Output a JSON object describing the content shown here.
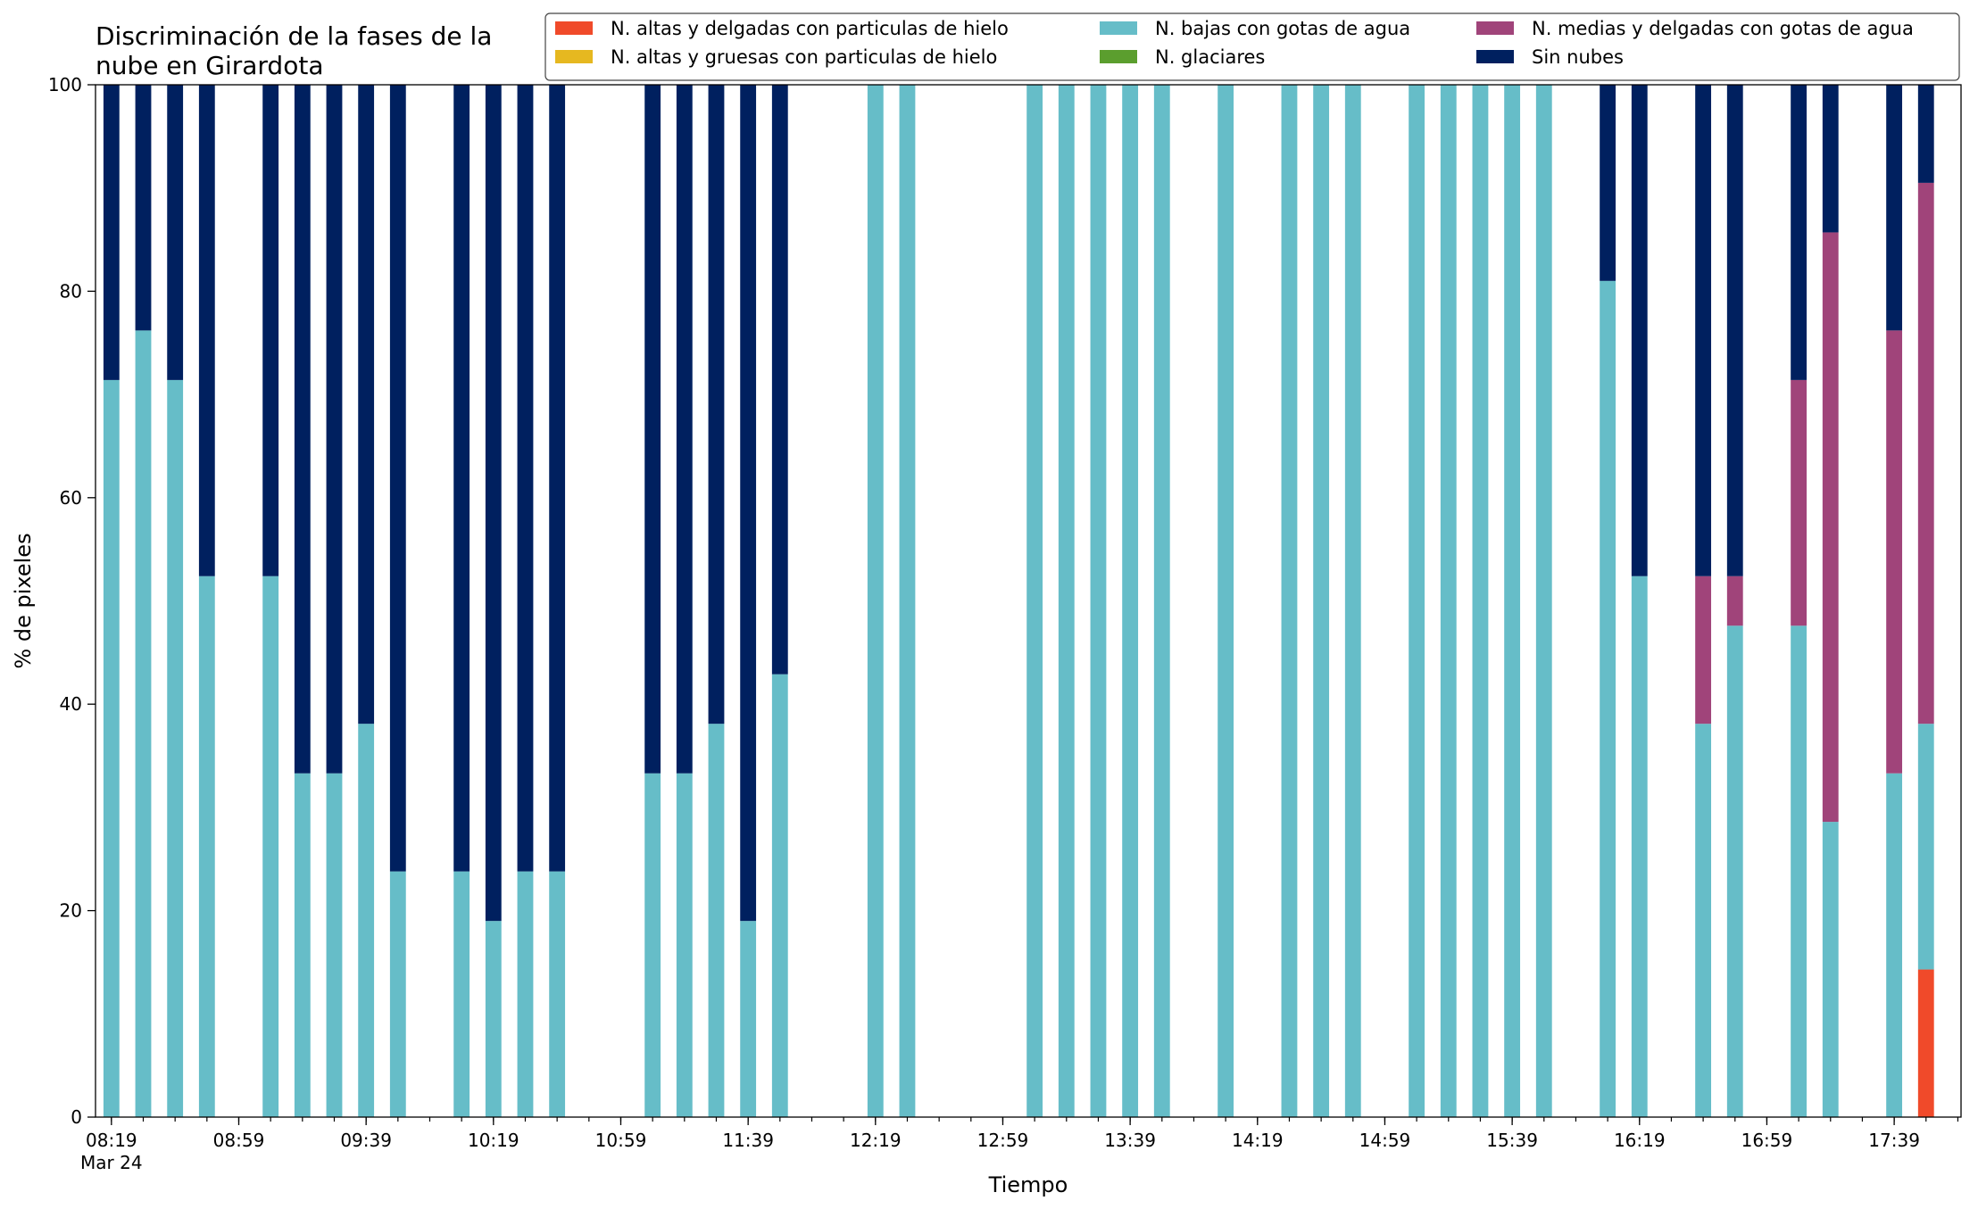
{
  "chart_data": {
    "type": "bar",
    "stacked": true,
    "title": "Discriminación de la fases de la\nnube en Girardota",
    "xlabel": "Tiempo",
    "ylabel": "% de pixeles",
    "ylim": [
      0,
      100
    ],
    "yticks": [
      0,
      20,
      40,
      60,
      80,
      100
    ],
    "x_range": [
      "08:14",
      "18:00"
    ],
    "xtick_major": [
      "08:19",
      "08:59",
      "09:39",
      "10:19",
      "10:59",
      "11:39",
      "12:19",
      "12:59",
      "13:39",
      "14:19",
      "14:59",
      "15:39",
      "16:19",
      "16:59",
      "17:39"
    ],
    "xtick_date": "Mar 24",
    "minor_tick_interval_min": 10,
    "bar_width_min": 5,
    "grid": false,
    "legend": {
      "placement": "top-right",
      "ncol": 3,
      "entries": [
        "N. altas y delgadas con particulas de hielo",
        "N. altas y gruesas con particulas de hielo",
        "N. bajas con gotas de agua",
        "N. glaciares",
        "N. medias y delgadas con gotas de agua",
        "Sin nubes"
      ]
    },
    "series": [
      {
        "name": "N. altas y delgadas con particulas de hielo",
        "color": "#f04a2a"
      },
      {
        "name": "N. altas y gruesas con particulas de hielo",
        "color": "#e6b820"
      },
      {
        "name": "N. bajas con gotas de agua",
        "color": "#66bdc8"
      },
      {
        "name": "N. glaciares",
        "color": "#5b9e2e"
      },
      {
        "name": "N. medias y delgadas con gotas de agua",
        "color": "#a0447a"
      },
      {
        "name": "Sin nubes",
        "color": "#00205f"
      }
    ],
    "x": [
      "08:19",
      "08:29",
      "08:39",
      "08:49",
      "09:09",
      "09:19",
      "09:29",
      "09:39",
      "09:49",
      "10:09",
      "10:19",
      "10:29",
      "10:39",
      "11:09",
      "11:19",
      "11:29",
      "11:39",
      "11:49",
      "12:19",
      "12:29",
      "13:09",
      "13:19",
      "13:29",
      "13:39",
      "13:49",
      "14:09",
      "14:29",
      "14:39",
      "14:49",
      "15:09",
      "15:19",
      "15:29",
      "15:39",
      "15:49",
      "16:09",
      "16:19",
      "16:39",
      "16:49",
      "17:09",
      "17:19",
      "17:39",
      "17:49"
    ],
    "values": [
      [
        0,
        0,
        71.4,
        0,
        0,
        28.6
      ],
      [
        0,
        0,
        76.2,
        0,
        0,
        23.8
      ],
      [
        0,
        0,
        71.4,
        0,
        0,
        28.6
      ],
      [
        0,
        0,
        52.4,
        0,
        0,
        47.6
      ],
      [
        0,
        0,
        52.4,
        0,
        0,
        47.6
      ],
      [
        0,
        0,
        33.3,
        0,
        0,
        66.7
      ],
      [
        0,
        0,
        33.3,
        0,
        0,
        66.7
      ],
      [
        0,
        0,
        38.1,
        0,
        0,
        61.9
      ],
      [
        0,
        0,
        23.8,
        0,
        0,
        76.2
      ],
      [
        0,
        0,
        23.8,
        0,
        0,
        76.2
      ],
      [
        0,
        0,
        19.0,
        0,
        0,
        81.0
      ],
      [
        0,
        0,
        23.8,
        0,
        0,
        76.2
      ],
      [
        0,
        0,
        23.8,
        0,
        0,
        76.2
      ],
      [
        0,
        0,
        33.3,
        0,
        0,
        66.7
      ],
      [
        0,
        0,
        33.3,
        0,
        0,
        66.7
      ],
      [
        0,
        0,
        38.1,
        0,
        0,
        61.9
      ],
      [
        0,
        0,
        19.0,
        0,
        0,
        81.0
      ],
      [
        0,
        0,
        42.9,
        0,
        0,
        57.1
      ],
      [
        0,
        0,
        100,
        0,
        0,
        0
      ],
      [
        0,
        0,
        100,
        0,
        0,
        0
      ],
      [
        0,
        0,
        100,
        0,
        0,
        0
      ],
      [
        0,
        0,
        100,
        0,
        0,
        0
      ],
      [
        0,
        0,
        100,
        0,
        0,
        0
      ],
      [
        0,
        0,
        100,
        0,
        0,
        0
      ],
      [
        0,
        0,
        100,
        0,
        0,
        0
      ],
      [
        0,
        0,
        100,
        0,
        0,
        0
      ],
      [
        0,
        0,
        100,
        0,
        0,
        0
      ],
      [
        0,
        0,
        100,
        0,
        0,
        0
      ],
      [
        0,
        0,
        100,
        0,
        0,
        0
      ],
      [
        0,
        0,
        100,
        0,
        0,
        0
      ],
      [
        0,
        0,
        100,
        0,
        0,
        0
      ],
      [
        0,
        0,
        100,
        0,
        0,
        0
      ],
      [
        0,
        0,
        100,
        0,
        0,
        0
      ],
      [
        0,
        0,
        100,
        0,
        0,
        0
      ],
      [
        0,
        0,
        81.0,
        0,
        0,
        19.0
      ],
      [
        0,
        0,
        52.4,
        0,
        0,
        47.6
      ],
      [
        0,
        0,
        38.1,
        0,
        14.3,
        47.6
      ],
      [
        0,
        0,
        47.6,
        0,
        4.8,
        47.6
      ],
      [
        0,
        0,
        47.6,
        0,
        23.8,
        28.6
      ],
      [
        0,
        0,
        28.6,
        0,
        57.1,
        14.3
      ],
      [
        0,
        0,
        33.3,
        0,
        42.9,
        23.8
      ],
      [
        14.3,
        0,
        23.8,
        0,
        52.4,
        9.5
      ]
    ]
  }
}
